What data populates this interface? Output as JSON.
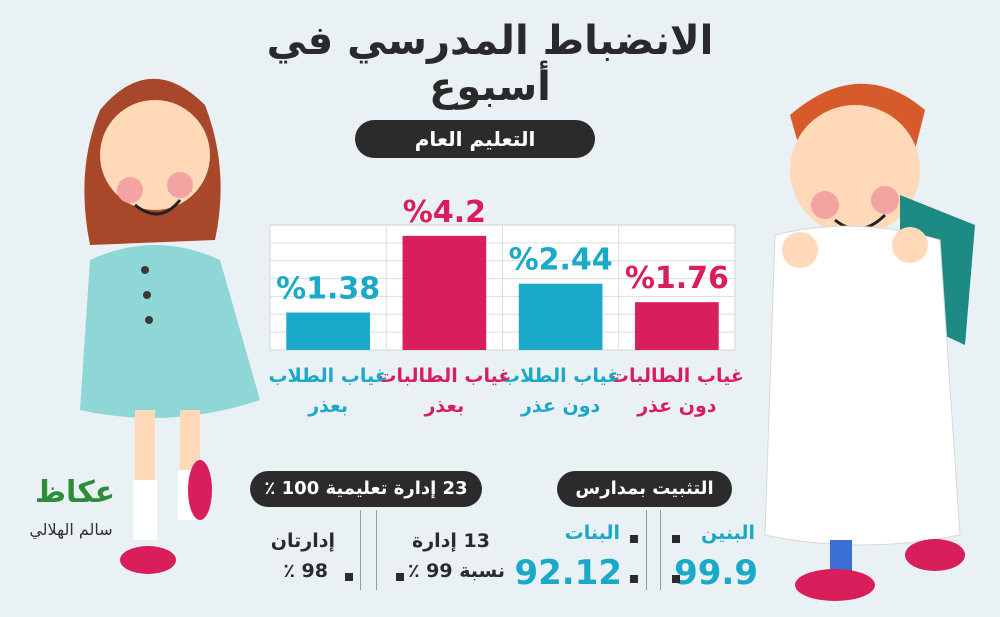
{
  "header": {
    "title": "الانضباط المدرسي في أسبوع"
  },
  "section": {
    "label": "التعليم العام"
  },
  "chart_data": {
    "type": "bar",
    "categories": [
      "غياب الطالبات دون عذر",
      "غياب الطلاب دون عذر",
      "غياب الطالبات بعذر",
      "غياب الطلاب بعذر"
    ],
    "category_lines": [
      [
        "غياب الطالبات",
        "دون عذر"
      ],
      [
        "غياب الطلاب",
        "دون عذر"
      ],
      [
        "غياب الطالبات",
        "بعذر"
      ],
      [
        "غياب الطلاب",
        "بعذر"
      ]
    ],
    "values": [
      1.76,
      2.44,
      4.2,
      1.38
    ],
    "value_labels": [
      "%1.76",
      "%2.44",
      "%4.2",
      "%1.38"
    ],
    "colors": [
      "#d81e5b",
      "#1aa9c8",
      "#d81e5b",
      "#1aa9c8"
    ],
    "ylim": [
      0,
      4.6
    ],
    "grid": true
  },
  "administration": {
    "heading": "23 إدارة تعليمية 100 ٪",
    "group_a": {
      "label": "13 إدارة",
      "value": "نسبة 99 ٪"
    },
    "group_b": {
      "label": "إدارتان",
      "value": "98 ٪"
    }
  },
  "enrollment": {
    "heading": "التثبيت بمدارس",
    "boys": {
      "label": "البنين",
      "value": "99.9"
    },
    "girls": {
      "label": "البنات",
      "value": "92.12"
    }
  },
  "credit": {
    "logo": "عكاظ",
    "author": "سالم الهلالي"
  },
  "colors": {
    "pink": "#d81e5b",
    "cyan": "#1aa9c8",
    "dark": "#2b2b2b"
  },
  "icons": [
    "girl-illustration",
    "boy-illustration",
    "okaz-logo-icon"
  ]
}
